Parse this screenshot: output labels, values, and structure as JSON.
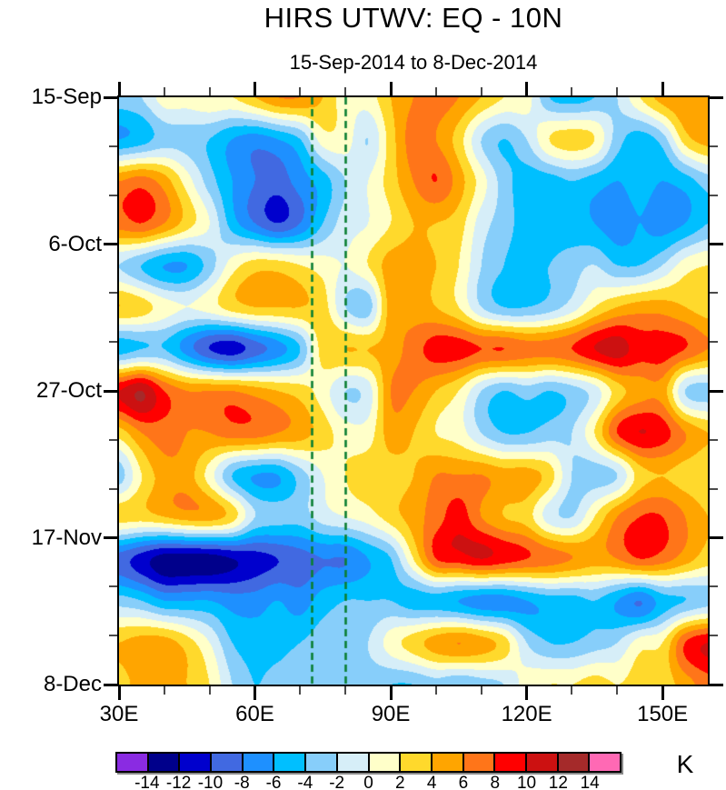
{
  "chart_data": {
    "type": "heatmap",
    "title": "HIRS UTWV: EQ - 10N",
    "subtitle": "15-Sep-2014 to 8-Dec-2014",
    "unit": "K",
    "x_axis": {
      "tick_labels": [
        "30E",
        "60E",
        "90E",
        "120E",
        "150E"
      ],
      "tick_lons": [
        30,
        60,
        90,
        120,
        150
      ],
      "minor_step": 10,
      "range": [
        30,
        160
      ]
    },
    "y_axis": {
      "tick_labels": [
        "15-Sep",
        "6-Oct",
        "27-Oct",
        "17-Nov",
        "8-Dec"
      ],
      "tick_days": [
        0,
        21,
        42,
        63,
        84
      ],
      "minor_step_days": 7,
      "range_days": [
        0,
        84
      ]
    },
    "levels": [
      -14,
      -12,
      -10,
      -8,
      -6,
      -4,
      -2,
      0,
      2,
      4,
      6,
      8,
      10,
      12,
      14
    ],
    "palette": [
      "#8A2BE2",
      "#00008B",
      "#0000CD",
      "#4169E1",
      "#1E90FF",
      "#00BFFF",
      "#87CEFA",
      "#D6EEF8",
      "#FFFFC9",
      "#FFD92C",
      "#FFA500",
      "#FF7519",
      "#FF0000",
      "#CC1111",
      "#A52A2A",
      "#FF69B4"
    ],
    "reference_lines": {
      "color": "#0B7F33",
      "style": "dashed",
      "lons": [
        72.5,
        80
      ]
    },
    "colorbar": {
      "labels": [
        "-14",
        "-12",
        "-10",
        "-8",
        "-6",
        "-4",
        "-2",
        "0",
        "2",
        "4",
        "6",
        "8",
        "10",
        "12",
        "14"
      ],
      "unit": "K"
    },
    "grid": {
      "lons": [
        30,
        35,
        40,
        45,
        50,
        55,
        60,
        65,
        70,
        75,
        80,
        85,
        90,
        95,
        100,
        105,
        110,
        115,
        120,
        125,
        130,
        135,
        140,
        145,
        150,
        155,
        160
      ],
      "dates": [
        "15-Sep",
        "21-Sep",
        "27-Sep",
        "3-Oct",
        "9-Oct",
        "15-Oct",
        "21-Oct",
        "27-Oct",
        "2-Nov",
        "8-Nov",
        "14-Nov",
        "20-Nov",
        "26-Nov",
        "2-Dec",
        "8-Dec"
      ],
      "values_K": [
        [
          -3,
          -2,
          1,
          1,
          2,
          2,
          4,
          6,
          6,
          4,
          1,
          1,
          4,
          6,
          7,
          6,
          4,
          2,
          1,
          -4,
          -5,
          -4,
          -2,
          2,
          5,
          6,
          5
        ],
        [
          -6,
          -5,
          -3,
          -3,
          -4,
          -6,
          -7,
          -6,
          -4,
          1,
          1,
          -2,
          3,
          7,
          6,
          3,
          -2,
          -4,
          -2,
          2,
          3,
          2,
          -3,
          -5,
          -3,
          3,
          5
        ],
        [
          6,
          7,
          5,
          1,
          -3,
          -6,
          -8,
          -9,
          -7,
          -5,
          -2,
          0,
          3,
          6,
          8,
          5,
          1,
          -3,
          -5,
          -5,
          -4,
          -5,
          -6,
          -5,
          -6,
          -5,
          -3
        ],
        [
          7,
          8,
          6,
          3,
          0,
          -5,
          -8,
          -10,
          -8,
          -4,
          -1,
          0,
          2,
          4,
          4,
          3,
          -1,
          -3,
          -5,
          -5,
          -5,
          -6,
          -7,
          -6,
          -7,
          -6,
          -4
        ],
        [
          -2,
          -4,
          -6,
          -6,
          -3,
          1,
          3,
          3,
          2,
          1,
          0,
          2,
          5,
          5,
          4,
          2,
          -2,
          -4,
          -5,
          -4,
          -3,
          -2,
          -4,
          -4,
          -2,
          1,
          2
        ],
        [
          4,
          3,
          1,
          0,
          1,
          3,
          4,
          4,
          4,
          3,
          -2,
          -3,
          5,
          5,
          4,
          2,
          -2,
          -4,
          -4,
          -3,
          -1,
          2,
          4,
          5,
          5,
          4,
          3
        ],
        [
          -5,
          -4,
          -4,
          -7,
          -10,
          -11,
          -9,
          -7,
          -4,
          3,
          4,
          4,
          5,
          7,
          9,
          9,
          8,
          8,
          7,
          7,
          8,
          10,
          11,
          9,
          9,
          8,
          6
        ],
        [
          10,
          12,
          8,
          6,
          6,
          6,
          5,
          4,
          3,
          1,
          -2,
          -1,
          6,
          6,
          4,
          2,
          -2,
          -4,
          -3,
          -4,
          -3,
          -1,
          3,
          5,
          5,
          -2,
          -3
        ],
        [
          3,
          6,
          7,
          6,
          6,
          7,
          7,
          6,
          5,
          3,
          1,
          1,
          5,
          4,
          2,
          1,
          -2,
          -4,
          -4,
          -3,
          -2,
          2,
          8,
          10,
          9,
          6,
          4
        ],
        [
          -3,
          2,
          5,
          5,
          1,
          -4,
          -6,
          -6,
          -3,
          0,
          2,
          3,
          3,
          4,
          6,
          6,
          6,
          5,
          5,
          3,
          -2,
          -3,
          -2,
          3,
          4,
          3,
          2
        ],
        [
          3,
          3,
          4,
          5,
          5,
          3,
          -2,
          -3,
          -3,
          -1,
          0,
          1,
          3,
          5,
          7,
          9,
          6,
          4,
          3,
          -1,
          -2,
          2,
          6,
          8,
          8,
          6,
          4
        ],
        [
          -9,
          -11,
          -13,
          -13,
          -13,
          -12,
          -11,
          -10,
          -9,
          -8,
          -8,
          -6,
          -4,
          2,
          8,
          9,
          10,
          9,
          8,
          7,
          6,
          5,
          6,
          8,
          7,
          5,
          3
        ],
        [
          -3,
          -4,
          -6,
          -6,
          -6,
          -7,
          -7,
          -6,
          -7,
          -5,
          -4,
          -4,
          -4,
          -5,
          -5,
          -6,
          -7,
          -7,
          -6,
          -5,
          -5,
          -4,
          -6,
          -8,
          -5,
          -4,
          -3
        ],
        [
          4,
          5,
          5,
          3,
          0,
          -4,
          -5,
          -5,
          -4,
          -3,
          -3,
          -2,
          1,
          3,
          5,
          6,
          5,
          3,
          -2,
          -4,
          -4,
          -3,
          -2,
          1,
          2,
          8,
          10
        ],
        [
          3,
          5,
          5,
          4,
          2,
          -2,
          -4,
          -3,
          -2,
          -3,
          -2,
          -3,
          -4,
          -4,
          -3,
          -4,
          -3,
          -2,
          1,
          2,
          2,
          3,
          2,
          3,
          3,
          5,
          7
        ]
      ]
    }
  }
}
